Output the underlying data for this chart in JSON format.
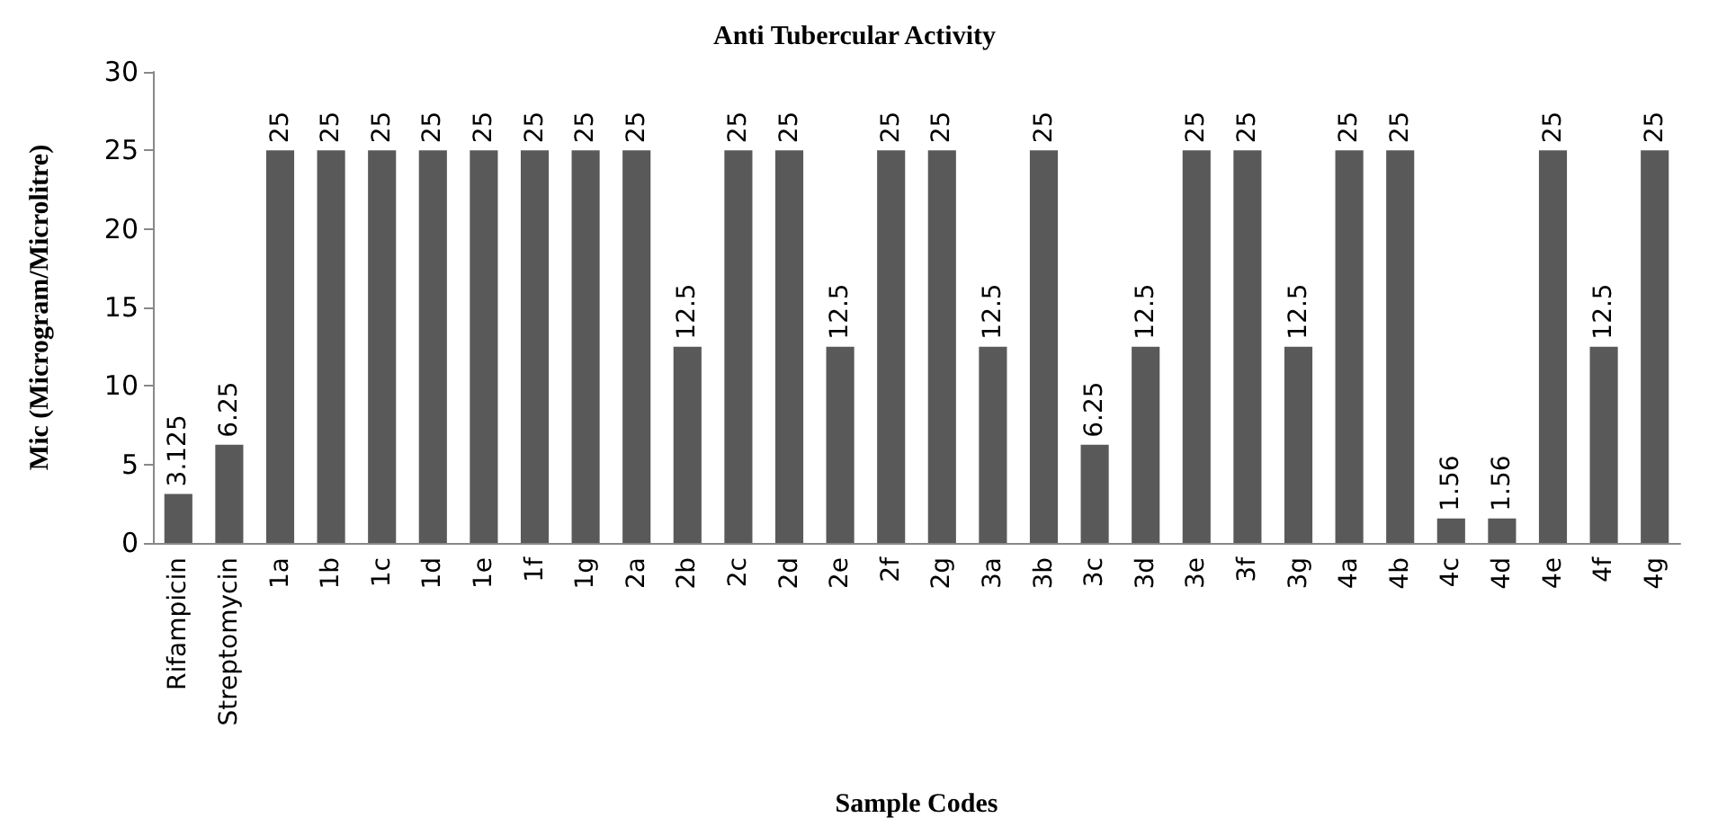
{
  "chart_data": {
    "type": "bar",
    "title": "Anti Tubercular Activity",
    "xlabel": "Sample Codes",
    "ylabel": "Mic (Microgram/Microlitre)",
    "categories": [
      "Rifampicin",
      "Streptomycin",
      "1a",
      "1b",
      "1c",
      "1d",
      "1e",
      "1f",
      "1g",
      "2a",
      "2b",
      "2c",
      "2d",
      "2e",
      "2f",
      "2g",
      "3a",
      "3b",
      "3c",
      "3d",
      "3e",
      "3f",
      "3g",
      "4a",
      "4b",
      "4c",
      "4d",
      "4e",
      "4f",
      "4g"
    ],
    "values": [
      3.125,
      6.25,
      25,
      25,
      25,
      25,
      25,
      25,
      25,
      25,
      12.5,
      25,
      25,
      12.5,
      25,
      25,
      12.5,
      25,
      6.25,
      12.5,
      25,
      25,
      12.5,
      25,
      25,
      1.56,
      1.56,
      25,
      12.5,
      25
    ],
    "color": "#595959",
    "ylim": [
      0,
      30
    ],
    "yticks": [
      0,
      5,
      10,
      15,
      20,
      25,
      30
    ],
    "grid": false,
    "data_labels": true
  }
}
